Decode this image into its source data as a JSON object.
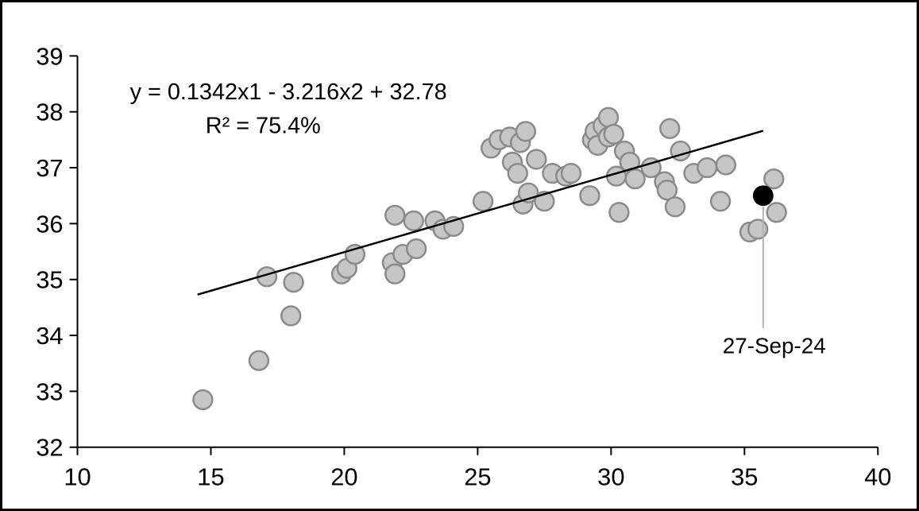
{
  "chart_data": {
    "type": "scatter",
    "title": "",
    "xlabel": "",
    "ylabel": "",
    "xlim": [
      10,
      40
    ],
    "ylim": [
      32,
      39
    ],
    "x_ticks": [
      "10",
      "15",
      "20",
      "25",
      "30",
      "35",
      "40"
    ],
    "y_ticks": [
      "32",
      "33",
      "34",
      "35",
      "36",
      "37",
      "38",
      "39"
    ],
    "grid": false,
    "legend": "none",
    "annotation": {
      "equation": "y = 0.1342x1 - 3.216x2 + 32.78",
      "r_squared": "R² = 75.4%"
    },
    "series": [
      {
        "name": "observations",
        "marker": "circle",
        "fill": "#c6c6c6",
        "stroke": "#8a8a8a",
        "points": [
          [
            14.7,
            32.85
          ],
          [
            16.8,
            33.55
          ],
          [
            17.1,
            35.05
          ],
          [
            18.0,
            34.35
          ],
          [
            18.1,
            34.95
          ],
          [
            19.9,
            35.1
          ],
          [
            20.1,
            35.2
          ],
          [
            20.4,
            35.45
          ],
          [
            21.8,
            35.3
          ],
          [
            21.9,
            35.1
          ],
          [
            21.9,
            36.15
          ],
          [
            22.2,
            35.45
          ],
          [
            22.6,
            36.05
          ],
          [
            22.7,
            35.55
          ],
          [
            23.4,
            36.05
          ],
          [
            23.7,
            35.9
          ],
          [
            24.1,
            35.95
          ],
          [
            25.2,
            36.4
          ],
          [
            25.5,
            37.35
          ],
          [
            25.8,
            37.5
          ],
          [
            26.2,
            37.55
          ],
          [
            26.3,
            37.1
          ],
          [
            26.5,
            36.9
          ],
          [
            26.6,
            37.45
          ],
          [
            26.8,
            37.65
          ],
          [
            26.7,
            36.35
          ],
          [
            26.9,
            36.55
          ],
          [
            27.2,
            37.15
          ],
          [
            27.5,
            36.4
          ],
          [
            27.8,
            36.9
          ],
          [
            28.3,
            36.85
          ],
          [
            28.5,
            36.9
          ],
          [
            29.2,
            36.5
          ],
          [
            29.3,
            37.5
          ],
          [
            29.4,
            37.65
          ],
          [
            29.5,
            37.4
          ],
          [
            29.7,
            37.75
          ],
          [
            29.9,
            37.55
          ],
          [
            29.9,
            37.9
          ],
          [
            30.1,
            37.6
          ],
          [
            30.2,
            36.85
          ],
          [
            30.3,
            36.2
          ],
          [
            30.5,
            37.3
          ],
          [
            30.7,
            37.1
          ],
          [
            30.9,
            36.8
          ],
          [
            31.5,
            37.0
          ],
          [
            32.0,
            36.75
          ],
          [
            32.1,
            36.6
          ],
          [
            32.2,
            37.7
          ],
          [
            32.4,
            36.3
          ],
          [
            32.6,
            37.3
          ],
          [
            33.1,
            36.9
          ],
          [
            33.6,
            37.0
          ],
          [
            34.1,
            36.4
          ],
          [
            34.3,
            37.05
          ],
          [
            35.2,
            35.85
          ],
          [
            35.5,
            35.9
          ],
          [
            36.1,
            36.8
          ],
          [
            36.2,
            36.2
          ]
        ]
      },
      {
        "name": "highlighted-observation",
        "marker": "circle",
        "color": "#000000",
        "label": "27-Sep-24",
        "point": [
          35.7,
          36.5
        ]
      }
    ],
    "trendline": {
      "x1": 14.5,
      "y1": 34.73,
      "x2": 35.7,
      "y2": 37.66,
      "color": "#000000"
    }
  }
}
